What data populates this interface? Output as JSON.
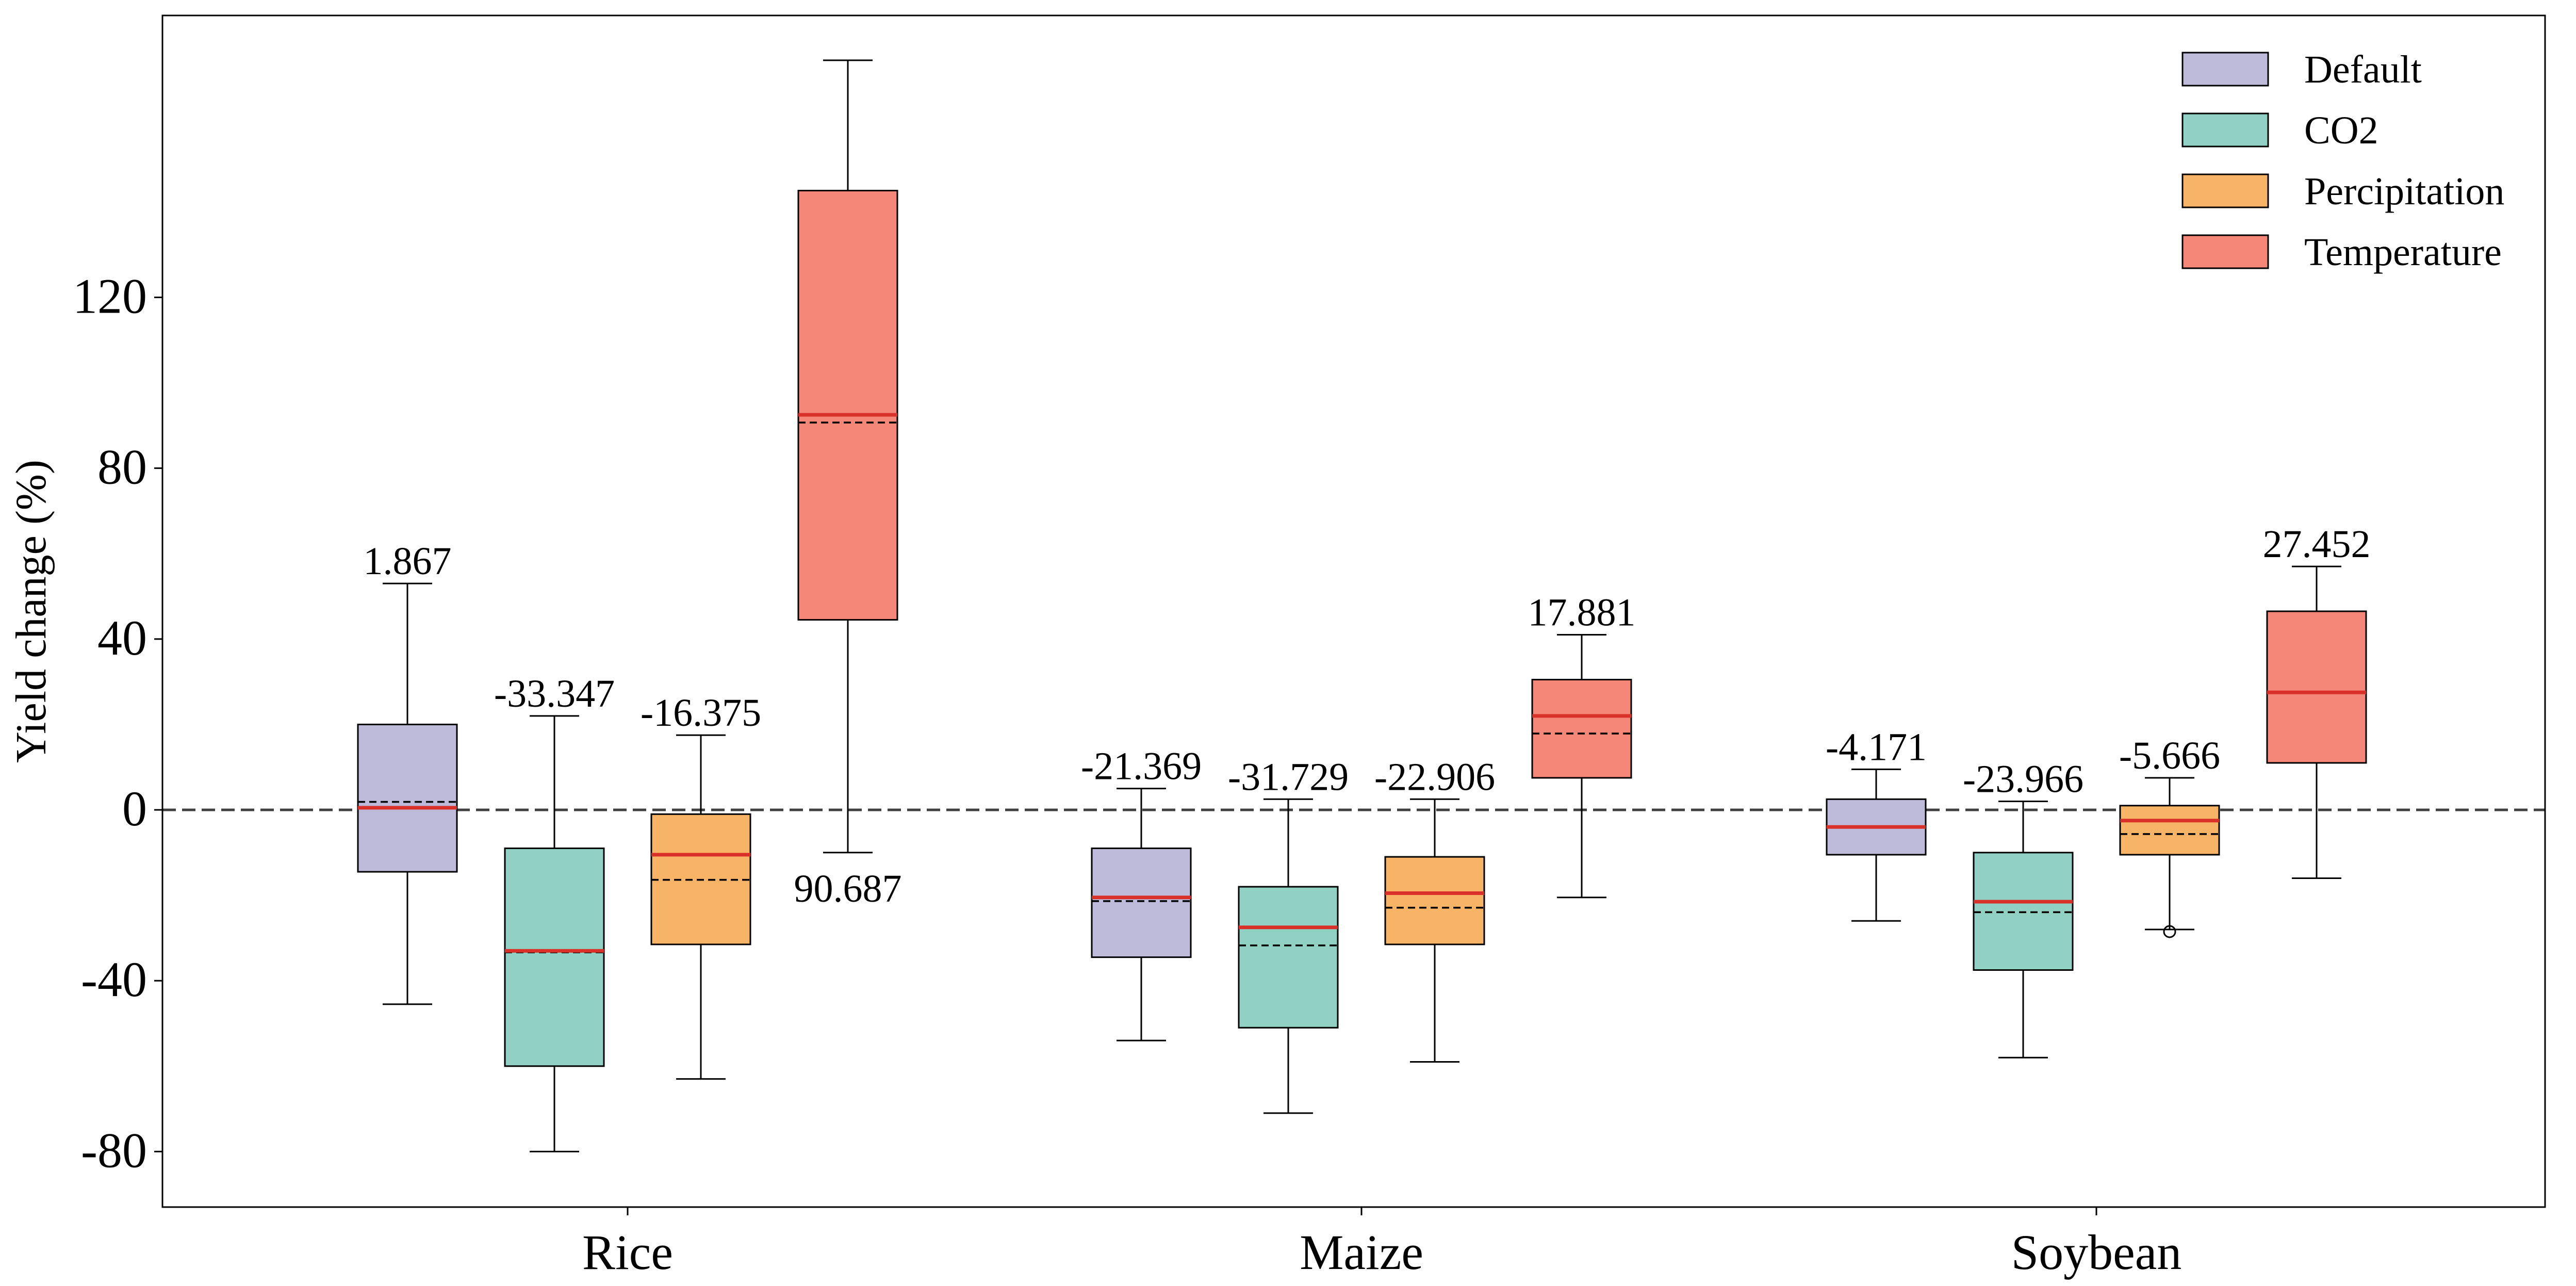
{
  "chart_data": {
    "type": "box",
    "title": "",
    "xlabel": "",
    "ylabel": "Yield change (%)",
    "ylim": [
      -93,
      186
    ],
    "yticks": [
      -80,
      -40,
      0,
      40,
      80,
      120
    ],
    "ytick_labels": [
      "-80",
      "-40",
      "0",
      "40",
      "80",
      "120"
    ],
    "reference_line": {
      "y": 0,
      "style": "dashed",
      "color": "#404040"
    },
    "legend": {
      "position": "top-right"
    },
    "categories": [
      "Rice",
      "Maize",
      "Soybean"
    ],
    "series": [
      {
        "name": "Default",
        "color": "#bebad9"
      },
      {
        "name": "CO2",
        "color": "#90d1c3"
      },
      {
        "name": "Percipitation",
        "color": "#f7b366"
      },
      {
        "name": "Temperature",
        "color": "#f48778"
      }
    ],
    "median_color": "#d9312a",
    "boxes": [
      {
        "category": "Rice",
        "series": "Default",
        "whisker_low": -45.5,
        "q1": -14.5,
        "median": 0.5,
        "mean": 1.867,
        "q3": 20.0,
        "whisker_high": 53.0,
        "label": "1.867",
        "label_pos": "above",
        "outliers": []
      },
      {
        "category": "Rice",
        "series": "CO2",
        "whisker_low": -80.0,
        "q1": -60.0,
        "median": -33.0,
        "mean": -33.347,
        "q3": -9.0,
        "whisker_high": 22.0,
        "label": "-33.347",
        "label_pos": "above",
        "outliers": []
      },
      {
        "category": "Rice",
        "series": "Percipitation",
        "whisker_low": -63.0,
        "q1": -31.5,
        "median": -10.5,
        "mean": -16.375,
        "q3": -1.0,
        "whisker_high": 17.5,
        "label": "-16.375",
        "label_pos": "above",
        "outliers": []
      },
      {
        "category": "Rice",
        "series": "Temperature",
        "whisker_low": -10.0,
        "q1": 44.5,
        "median": 92.5,
        "mean": 90.687,
        "q3": 145.0,
        "whisker_high": 175.5,
        "label": "90.687",
        "label_pos": "below",
        "outliers": []
      },
      {
        "category": "Maize",
        "series": "Default",
        "whisker_low": -54.0,
        "q1": -34.5,
        "median": -20.5,
        "mean": -21.369,
        "q3": -9.0,
        "whisker_high": 5.0,
        "label": "-21.369",
        "label_pos": "above",
        "outliers": []
      },
      {
        "category": "Maize",
        "series": "CO2",
        "whisker_low": -71.0,
        "q1": -51.0,
        "median": -27.5,
        "mean": -31.729,
        "q3": -18.0,
        "whisker_high": 2.5,
        "label": "-31.729",
        "label_pos": "above",
        "outliers": []
      },
      {
        "category": "Maize",
        "series": "Percipitation",
        "whisker_low": -59.0,
        "q1": -31.5,
        "median": -19.5,
        "mean": -22.906,
        "q3": -11.0,
        "whisker_high": 2.5,
        "label": "-22.906",
        "label_pos": "above",
        "outliers": []
      },
      {
        "category": "Maize",
        "series": "Temperature",
        "whisker_low": -20.5,
        "q1": 7.5,
        "median": 22.0,
        "mean": 17.881,
        "q3": 30.5,
        "whisker_high": 41.0,
        "label": "17.881",
        "label_pos": "above",
        "outliers": []
      },
      {
        "category": "Soybean",
        "series": "Default",
        "whisker_low": -26.0,
        "q1": -10.5,
        "median": -4.0,
        "mean": -4.171,
        "q3": 2.5,
        "whisker_high": 9.5,
        "label": "-4.171",
        "label_pos": "above",
        "outliers": []
      },
      {
        "category": "Soybean",
        "series": "CO2",
        "whisker_low": -58.0,
        "q1": -37.5,
        "median": -21.5,
        "mean": -23.966,
        "q3": -10.0,
        "whisker_high": 2.0,
        "label": "-23.966",
        "label_pos": "above",
        "outliers": []
      },
      {
        "category": "Soybean",
        "series": "Percipitation",
        "whisker_low": -28.0,
        "q1": -10.5,
        "median": -2.5,
        "mean": -5.666,
        "q3": 1.0,
        "whisker_high": 7.5,
        "label": "-5.666",
        "label_pos": "above",
        "outliers": [
          -28.5
        ]
      },
      {
        "category": "Soybean",
        "series": "Temperature",
        "whisker_low": -16.0,
        "q1": 11.0,
        "median": 27.5,
        "mean": 27.452,
        "q3": 46.5,
        "whisker_high": 57.0,
        "label": "27.452",
        "label_pos": "above",
        "outliers": []
      }
    ]
  }
}
